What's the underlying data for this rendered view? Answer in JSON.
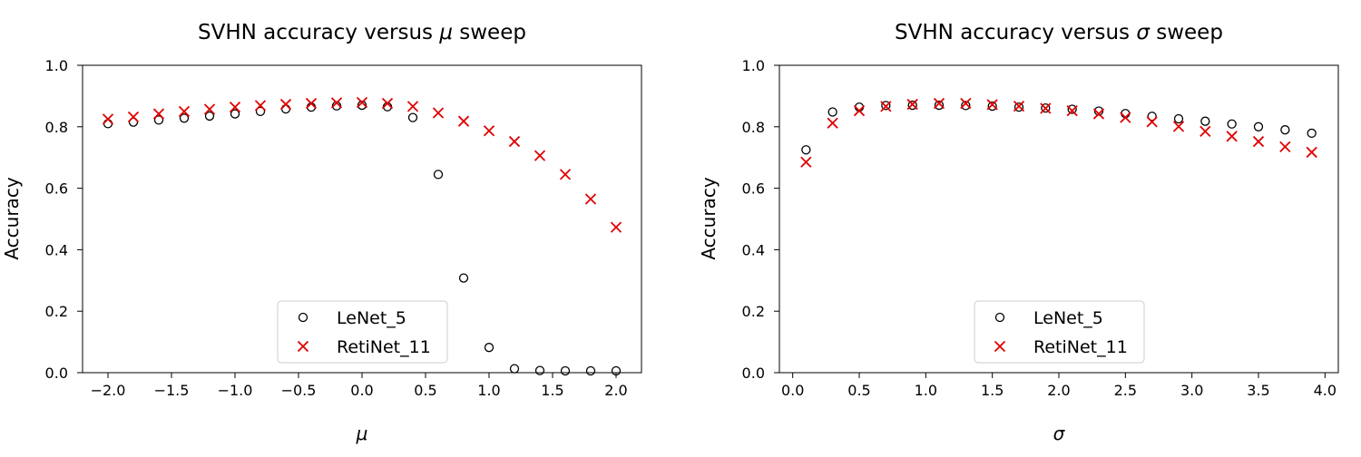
{
  "chart_data": [
    {
      "type": "scatter",
      "title_prefix": "SVHN accuracy versus ",
      "title_symbol": "μ",
      "title_suffix": " sweep",
      "xlabel": "μ",
      "ylabel": "Accuracy",
      "xlim": [
        -2.2,
        2.2
      ],
      "ylim": [
        0.0,
        1.0
      ],
      "xticks": [
        -2.0,
        -1.5,
        -1.0,
        -0.5,
        0.0,
        0.5,
        1.0,
        1.5,
        2.0
      ],
      "xtick_labels": [
        "−2.0",
        "−1.5",
        "−1.0",
        "−0.5",
        "0.0",
        "0.5",
        "1.0",
        "1.5",
        "2.0"
      ],
      "yticks": [
        0.0,
        0.2,
        0.4,
        0.6,
        0.8,
        1.0
      ],
      "ytick_labels": [
        "0.0",
        "0.2",
        "0.4",
        "0.6",
        "0.8",
        "1.0"
      ],
      "grid": false,
      "legend_position": "lower center",
      "x": [
        -2.0,
        -1.8,
        -1.6,
        -1.4,
        -1.2,
        -1.0,
        -0.8,
        -0.6,
        -0.4,
        -0.2,
        0.0,
        0.2,
        0.4,
        0.6,
        0.8,
        1.0,
        1.2,
        1.4,
        1.6,
        1.8,
        2.0
      ],
      "series": [
        {
          "name": "LeNet_5",
          "marker": "circle",
          "color": "#000000",
          "values": [
            0.81,
            0.815,
            0.822,
            0.828,
            0.835,
            0.842,
            0.85,
            0.858,
            0.864,
            0.868,
            0.87,
            0.865,
            0.83,
            0.645,
            0.308,
            0.082,
            0.013,
            0.007,
            0.006,
            0.006,
            0.006
          ]
        },
        {
          "name": "RetiNet_11",
          "marker": "x",
          "color": "#e00000",
          "values": [
            0.825,
            0.832,
            0.842,
            0.85,
            0.857,
            0.864,
            0.869,
            0.873,
            0.876,
            0.878,
            0.879,
            0.876,
            0.866,
            0.845,
            0.818,
            0.787,
            0.752,
            0.706,
            0.645,
            0.565,
            0.473
          ]
        }
      ]
    },
    {
      "type": "scatter",
      "title_prefix": "SVHN accuracy versus ",
      "title_symbol": "σ",
      "title_suffix": " sweep",
      "xlabel": "σ",
      "ylabel": "Accuracy",
      "xlim": [
        -0.1,
        4.1
      ],
      "ylim": [
        0.0,
        1.0
      ],
      "xticks": [
        0.0,
        0.5,
        1.0,
        1.5,
        2.0,
        2.5,
        3.0,
        3.5,
        4.0
      ],
      "xtick_labels": [
        "0.0",
        "0.5",
        "1.0",
        "1.5",
        "2.0",
        "2.5",
        "3.0",
        "3.5",
        "4.0"
      ],
      "yticks": [
        0.0,
        0.2,
        0.4,
        0.6,
        0.8,
        1.0
      ],
      "ytick_labels": [
        "0.0",
        "0.2",
        "0.4",
        "0.6",
        "0.8",
        "1.0"
      ],
      "grid": false,
      "legend_position": "lower center",
      "x": [
        0.1,
        0.3,
        0.5,
        0.7,
        0.9,
        1.1,
        1.3,
        1.5,
        1.7,
        1.9,
        2.1,
        2.3,
        2.5,
        2.7,
        2.9,
        3.1,
        3.3,
        3.5,
        3.7,
        3.9
      ],
      "series": [
        {
          "name": "LeNet_5",
          "marker": "circle",
          "color": "#000000",
          "values": [
            0.725,
            0.848,
            0.864,
            0.869,
            0.87,
            0.87,
            0.869,
            0.867,
            0.864,
            0.861,
            0.857,
            0.851,
            0.843,
            0.834,
            0.826,
            0.818,
            0.809,
            0.8,
            0.79,
            0.779
          ]
        },
        {
          "name": "RetiNet_11",
          "marker": "x",
          "color": "#e00000",
          "values": [
            0.685,
            0.812,
            0.852,
            0.866,
            0.873,
            0.876,
            0.876,
            0.872,
            0.867,
            0.86,
            0.852,
            0.842,
            0.83,
            0.816,
            0.801,
            0.785,
            0.769,
            0.752,
            0.735,
            0.717
          ]
        }
      ]
    }
  ]
}
